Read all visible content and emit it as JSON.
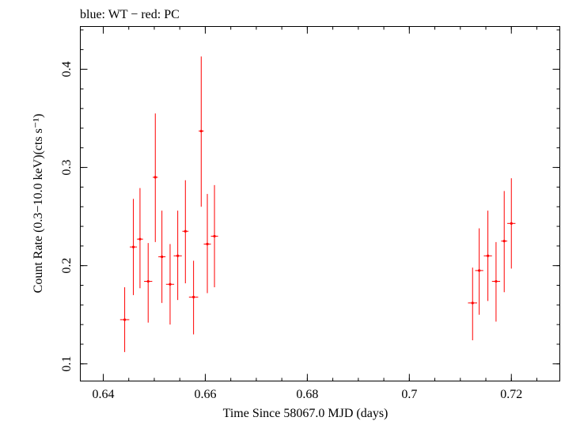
{
  "chart_data": {
    "type": "scatter",
    "title": "blue: WT − red: PC",
    "xlabel": "Time Since 58067.0 MJD (days)",
    "ylabel": "Count Rate (0.3−10.0 keV)(cts s⁻¹)",
    "xlim": [
      0.6355,
      0.7295
    ],
    "ylim": [
      0.0825,
      0.4435
    ],
    "x_ticks": [
      {
        "value": 0.64,
        "label": "0.64"
      },
      {
        "value": 0.66,
        "label": "0.66"
      },
      {
        "value": 0.68,
        "label": "0.68"
      },
      {
        "value": 0.7,
        "label": "0.7"
      },
      {
        "value": 0.72,
        "label": "0.72"
      }
    ],
    "y_ticks": [
      {
        "value": 0.1,
        "label": "0.1"
      },
      {
        "value": 0.2,
        "label": "0.2"
      },
      {
        "value": 0.3,
        "label": "0.3"
      },
      {
        "value": 0.4,
        "label": "0.4"
      }
    ],
    "x_minor_step": 0.005,
    "y_minor_step": 0.02,
    "series": [
      {
        "name": "PC",
        "color": "#ff0000",
        "points": [
          {
            "x": 0.6442,
            "y": 0.145,
            "xerr": 0.0009,
            "ylo": 0.112,
            "yhi": 0.178
          },
          {
            "x": 0.6459,
            "y": 0.219,
            "xerr": 0.0007,
            "ylo": 0.17,
            "yhi": 0.268
          },
          {
            "x": 0.6472,
            "y": 0.227,
            "xerr": 0.0006,
            "ylo": 0.177,
            "yhi": 0.279
          },
          {
            "x": 0.6488,
            "y": 0.184,
            "xerr": 0.0008,
            "ylo": 0.142,
            "yhi": 0.223
          },
          {
            "x": 0.6502,
            "y": 0.29,
            "xerr": 0.0005,
            "ylo": 0.224,
            "yhi": 0.355
          },
          {
            "x": 0.6515,
            "y": 0.209,
            "xerr": 0.0007,
            "ylo": 0.162,
            "yhi": 0.256
          },
          {
            "x": 0.6531,
            "y": 0.181,
            "xerr": 0.0008,
            "ylo": 0.14,
            "yhi": 0.222
          },
          {
            "x": 0.6546,
            "y": 0.21,
            "xerr": 0.0008,
            "ylo": 0.165,
            "yhi": 0.256
          },
          {
            "x": 0.6561,
            "y": 0.235,
            "xerr": 0.0006,
            "ylo": 0.182,
            "yhi": 0.287
          },
          {
            "x": 0.6577,
            "y": 0.168,
            "xerr": 0.0009,
            "ylo": 0.13,
            "yhi": 0.205
          },
          {
            "x": 0.6592,
            "y": 0.337,
            "xerr": 0.0005,
            "ylo": 0.26,
            "yhi": 0.413
          },
          {
            "x": 0.6604,
            "y": 0.222,
            "xerr": 0.0007,
            "ylo": 0.172,
            "yhi": 0.273
          },
          {
            "x": 0.6618,
            "y": 0.23,
            "xerr": 0.0007,
            "ylo": 0.178,
            "yhi": 0.282
          },
          {
            "x": 0.7124,
            "y": 0.162,
            "xerr": 0.0009,
            "ylo": 0.124,
            "yhi": 0.198
          },
          {
            "x": 0.7137,
            "y": 0.195,
            "xerr": 0.0008,
            "ylo": 0.15,
            "yhi": 0.238
          },
          {
            "x": 0.7154,
            "y": 0.21,
            "xerr": 0.0008,
            "ylo": 0.164,
            "yhi": 0.256
          },
          {
            "x": 0.717,
            "y": 0.184,
            "xerr": 0.0008,
            "ylo": 0.143,
            "yhi": 0.224
          },
          {
            "x": 0.7186,
            "y": 0.225,
            "xerr": 0.0006,
            "ylo": 0.173,
            "yhi": 0.276
          },
          {
            "x": 0.72,
            "y": 0.243,
            "xerr": 0.0008,
            "ylo": 0.197,
            "yhi": 0.289
          }
        ]
      }
    ]
  }
}
